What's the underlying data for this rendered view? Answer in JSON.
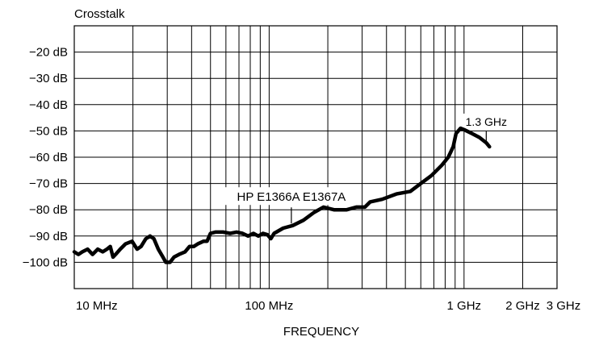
{
  "chart_data": {
    "type": "line",
    "title": "Crosstalk",
    "xlabel": "FREQUENCY",
    "ylabel": "",
    "x_scale": "log",
    "y_scale": "linear",
    "xlim": [
      10,
      3000
    ],
    "ylim": [
      -110,
      -10
    ],
    "grid": true,
    "x_ticks": [
      {
        "value": 10,
        "label": "10 MHz"
      },
      {
        "value": 100,
        "label": "100 MHz"
      },
      {
        "value": 1000,
        "label": "1 GHz"
      },
      {
        "value": 2000,
        "label": "2 GHz"
      },
      {
        "value": 3000,
        "label": "3 GHz"
      }
    ],
    "y_ticks": [
      {
        "value": -20,
        "label": "−20 dB"
      },
      {
        "value": -30,
        "label": "−30 dB"
      },
      {
        "value": -40,
        "label": "−40 dB"
      },
      {
        "value": -50,
        "label": "−50 dB"
      },
      {
        "value": -60,
        "label": "−60 dB"
      },
      {
        "value": -70,
        "label": "−70 dB"
      },
      {
        "value": -80,
        "label": "−80 dB"
      },
      {
        "value": -90,
        "label": "−90 dB"
      },
      {
        "value": -100,
        "label": "−100 dB"
      }
    ],
    "annotations": [
      {
        "text": "HP  E1366A  E1367A",
        "x": 130,
        "y": -84
      },
      {
        "text": "1.3 GHz",
        "x": 1300,
        "y": -52
      }
    ],
    "series": [
      {
        "color": "#000000",
        "points": [
          [
            10,
            -96
          ],
          [
            10.5,
            -97
          ],
          [
            11,
            -96
          ],
          [
            11.7,
            -95
          ],
          [
            12.4,
            -97
          ],
          [
            13.2,
            -95
          ],
          [
            14,
            -96
          ],
          [
            14.7,
            -95
          ],
          [
            15.3,
            -94
          ],
          [
            15.8,
            -98
          ],
          [
            16.3,
            -97
          ],
          [
            17.2,
            -95
          ],
          [
            18.3,
            -93
          ],
          [
            19.8,
            -92
          ],
          [
            21,
            -95
          ],
          [
            22,
            -94
          ],
          [
            23.3,
            -91
          ],
          [
            24.5,
            -90
          ],
          [
            25.6,
            -91
          ],
          [
            27,
            -95
          ],
          [
            28.5,
            -98
          ],
          [
            29.5,
            -100
          ],
          [
            31,
            -100
          ],
          [
            32.5,
            -98
          ],
          [
            34.5,
            -97
          ],
          [
            37,
            -96
          ],
          [
            39,
            -94
          ],
          [
            41,
            -94
          ],
          [
            43,
            -93
          ],
          [
            46,
            -92
          ],
          [
            48,
            -92
          ],
          [
            50,
            -89
          ],
          [
            53,
            -88.5
          ],
          [
            58,
            -88.5
          ],
          [
            63,
            -89
          ],
          [
            68,
            -88.5
          ],
          [
            73,
            -89
          ],
          [
            78,
            -90
          ],
          [
            83,
            -89
          ],
          [
            88,
            -90
          ],
          [
            93,
            -89
          ],
          [
            98,
            -89.5
          ],
          [
            102,
            -91
          ],
          [
            106,
            -89
          ],
          [
            118,
            -87
          ],
          [
            132,
            -86
          ],
          [
            150,
            -84
          ],
          [
            170,
            -81
          ],
          [
            190,
            -79
          ],
          [
            215,
            -80
          ],
          [
            250,
            -80
          ],
          [
            280,
            -79
          ],
          [
            310,
            -79
          ],
          [
            330,
            -77
          ],
          [
            380,
            -76
          ],
          [
            450,
            -74
          ],
          [
            530,
            -73
          ],
          [
            600,
            -70
          ],
          [
            680,
            -67
          ],
          [
            770,
            -63
          ],
          [
            830,
            -60
          ],
          [
            880,
            -56
          ],
          [
            910,
            -51
          ],
          [
            960,
            -49
          ],
          [
            1000,
            -49.5
          ],
          [
            1100,
            -51
          ],
          [
            1200,
            -52.5
          ],
          [
            1300,
            -54.5
          ],
          [
            1350,
            -56
          ]
        ]
      }
    ]
  }
}
